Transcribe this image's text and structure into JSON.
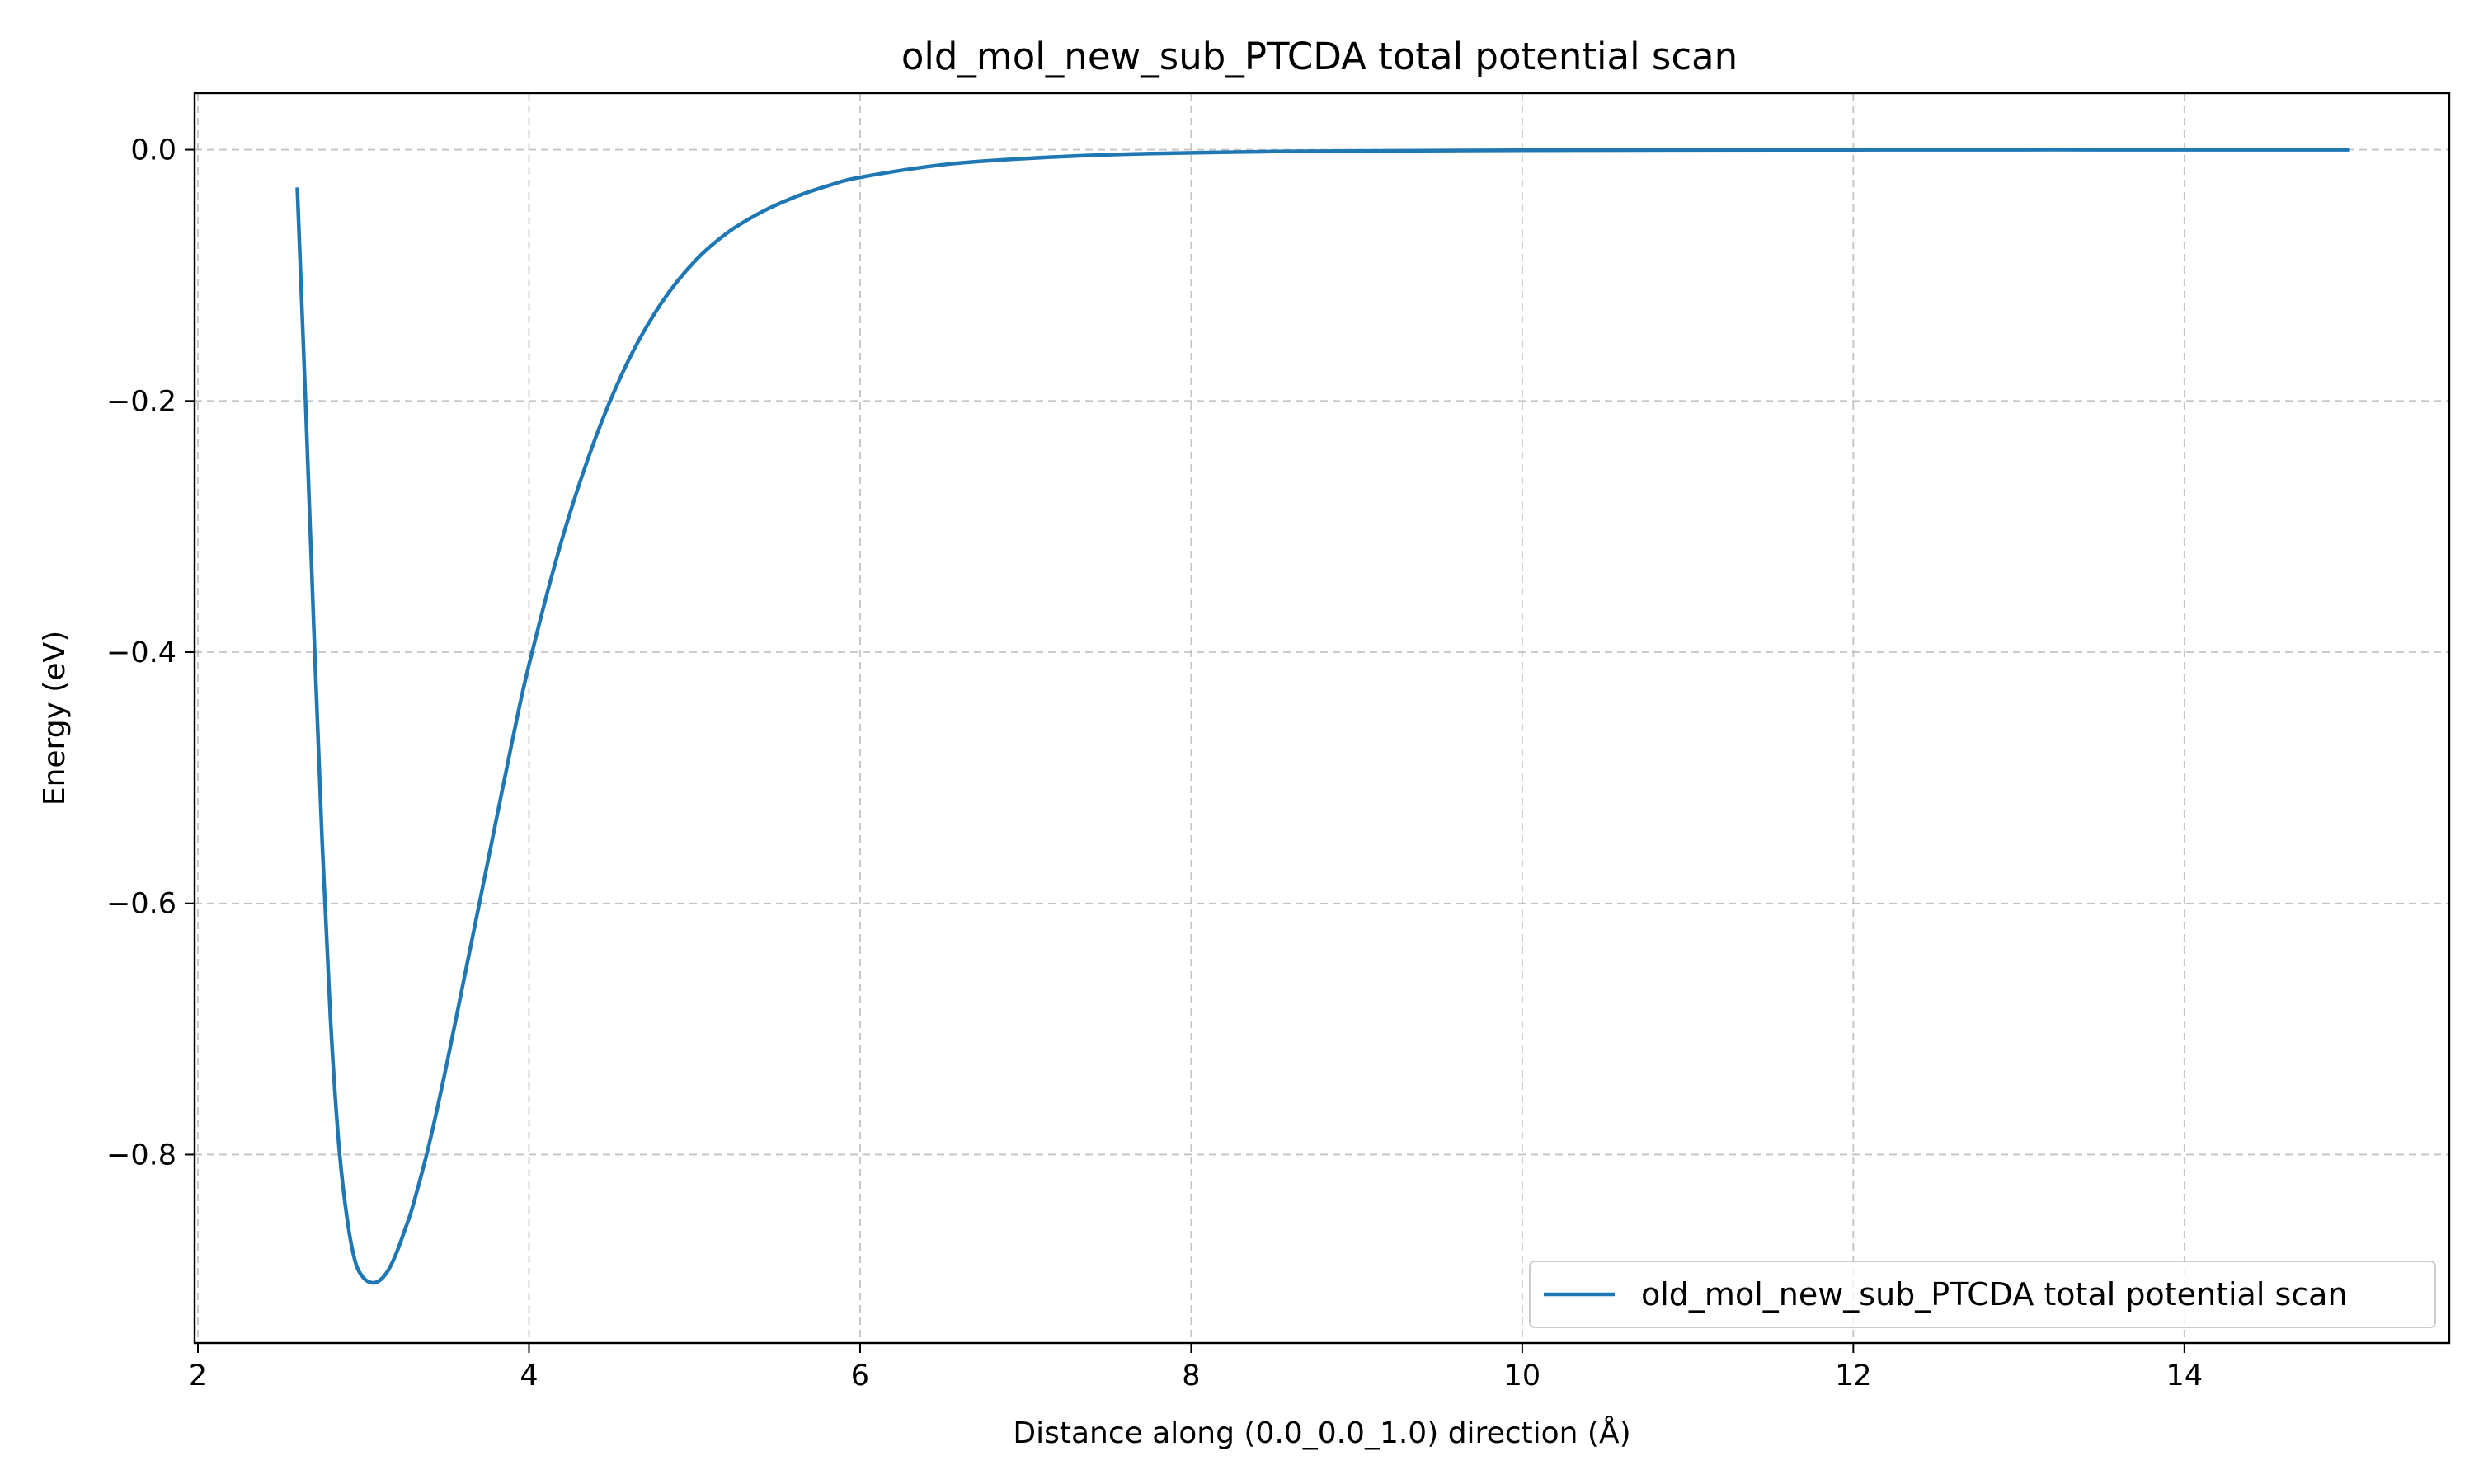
{
  "chart_data": {
    "type": "line",
    "title": "old_mol_new_sub_PTCDA total potential scan",
    "xlabel": "Distance along (0.0_0.0_1.0) direction (Å)",
    "ylabel": "Energy (eV)",
    "xlim": [
      1.98,
      15.6
    ],
    "ylim": [
      -0.95,
      0.045
    ],
    "xticks": [
      2,
      4,
      6,
      8,
      10,
      12,
      14
    ],
    "xtick_labels": [
      "2",
      "4",
      "6",
      "8",
      "10",
      "12",
      "14"
    ],
    "yticks": [
      0.0,
      -0.2,
      -0.4,
      -0.6,
      -0.8
    ],
    "ytick_labels": [
      "0.0",
      "−0.2",
      "−0.4",
      "−0.6",
      "−0.8"
    ],
    "grid": true,
    "grid_style": "dashed",
    "legend_position": "lower-right",
    "series": [
      {
        "name": "old_mol_new_sub_PTCDA total potential scan",
        "color": "#1f77b4",
        "x": [
          2.6,
          2.65,
          2.7,
          2.75,
          2.8,
          2.85,
          2.9,
          2.95,
          3.0,
          3.05,
          3.1,
          3.15,
          3.2,
          3.25,
          3.3,
          3.4,
          3.5,
          3.6,
          3.7,
          3.8,
          3.9,
          4.0,
          4.2,
          4.4,
          4.6,
          4.8,
          5.0,
          5.2,
          5.4,
          5.6,
          5.8,
          6.0,
          6.5,
          7.0,
          7.5,
          8.0,
          8.5,
          9.0,
          10.0,
          11.0,
          12.0,
          13.0,
          14.0,
          15.0
        ],
        "y": [
          -0.03,
          -0.2,
          -0.38,
          -0.55,
          -0.69,
          -0.79,
          -0.85,
          -0.885,
          -0.898,
          -0.902,
          -0.9,
          -0.892,
          -0.878,
          -0.86,
          -0.84,
          -0.79,
          -0.73,
          -0.665,
          -0.6,
          -0.535,
          -0.47,
          -0.41,
          -0.31,
          -0.23,
          -0.168,
          -0.122,
          -0.089,
          -0.066,
          -0.05,
          -0.038,
          -0.029,
          -0.022,
          -0.012,
          -0.007,
          -0.004,
          -0.0025,
          -0.0015,
          -0.001,
          -0.0005,
          -0.0002,
          -0.0001,
          0.0,
          0.0,
          0.0
        ]
      }
    ]
  }
}
